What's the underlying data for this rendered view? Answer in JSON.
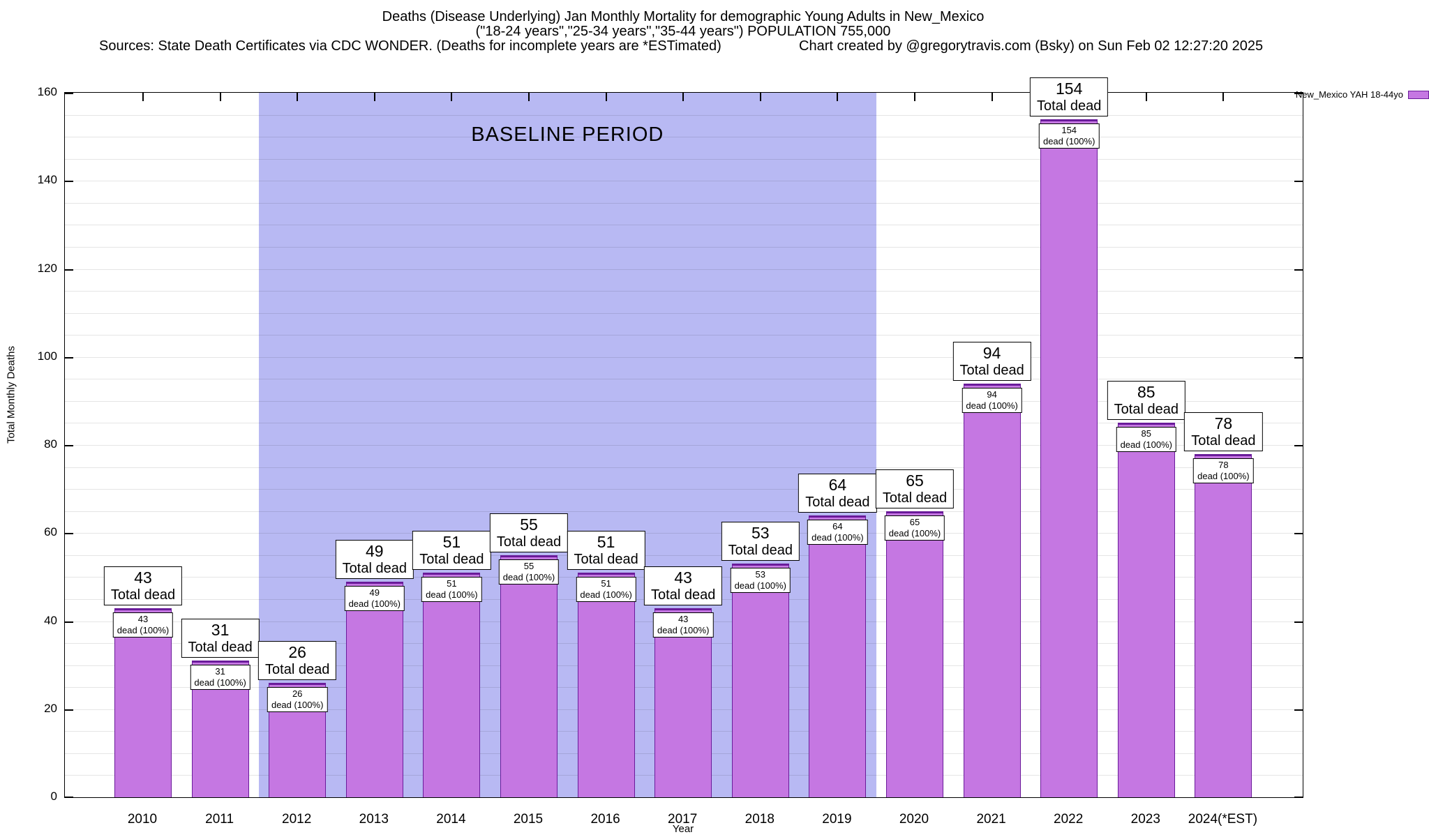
{
  "chart_data": {
    "type": "bar",
    "title": "Deaths (Disease Underlying) Jan Monthly Mortality for demographic Young Adults in New_Mexico",
    "subtitle": "(\"18-24 years\",\"25-34 years\",\"35-44 years\") POPULATION 755,000",
    "source_line": "Sources: State Death Certificates via CDC WONDER. (Deaths for incomplete years are *ESTimated)",
    "credit_line": "Chart created by @gregorytravis.com (Bsky) on Sun Feb 02 12:27:20 2025",
    "categories": [
      "2010",
      "2011",
      "2012",
      "2013",
      "2014",
      "2015",
      "2016",
      "2017",
      "2018",
      "2019",
      "2020",
      "2021",
      "2022",
      "2023",
      "2024(*EST)"
    ],
    "values": [
      43,
      31,
      26,
      49,
      51,
      55,
      51,
      43,
      53,
      64,
      65,
      94,
      154,
      85,
      78
    ],
    "xlabel": "Year",
    "ylabel": "Total Monthly Deaths",
    "ylim": [
      0,
      160
    ],
    "ytick_step": 20,
    "minor_grid_step": 5,
    "grid": true,
    "legend_position": "top-right",
    "baseline": {
      "label": "BASELINE PERIOD",
      "from_index": 2,
      "to_index": 9
    },
    "legend": {
      "label": "New_Mexico YAH 18-44yo"
    },
    "annotations": {
      "total_box_line2": "Total dead",
      "inner_box_line2": "dead (100%)"
    },
    "colors": {
      "bar_fill": "#c577e2",
      "bar_border": "#6a1b9a",
      "baseline_band": "#b8b9f3",
      "grid": "rgba(0,0,0,0.10)",
      "axis": "#000000",
      "label_box_bg": "#ffffff",
      "label_box_border": "#000000"
    }
  }
}
